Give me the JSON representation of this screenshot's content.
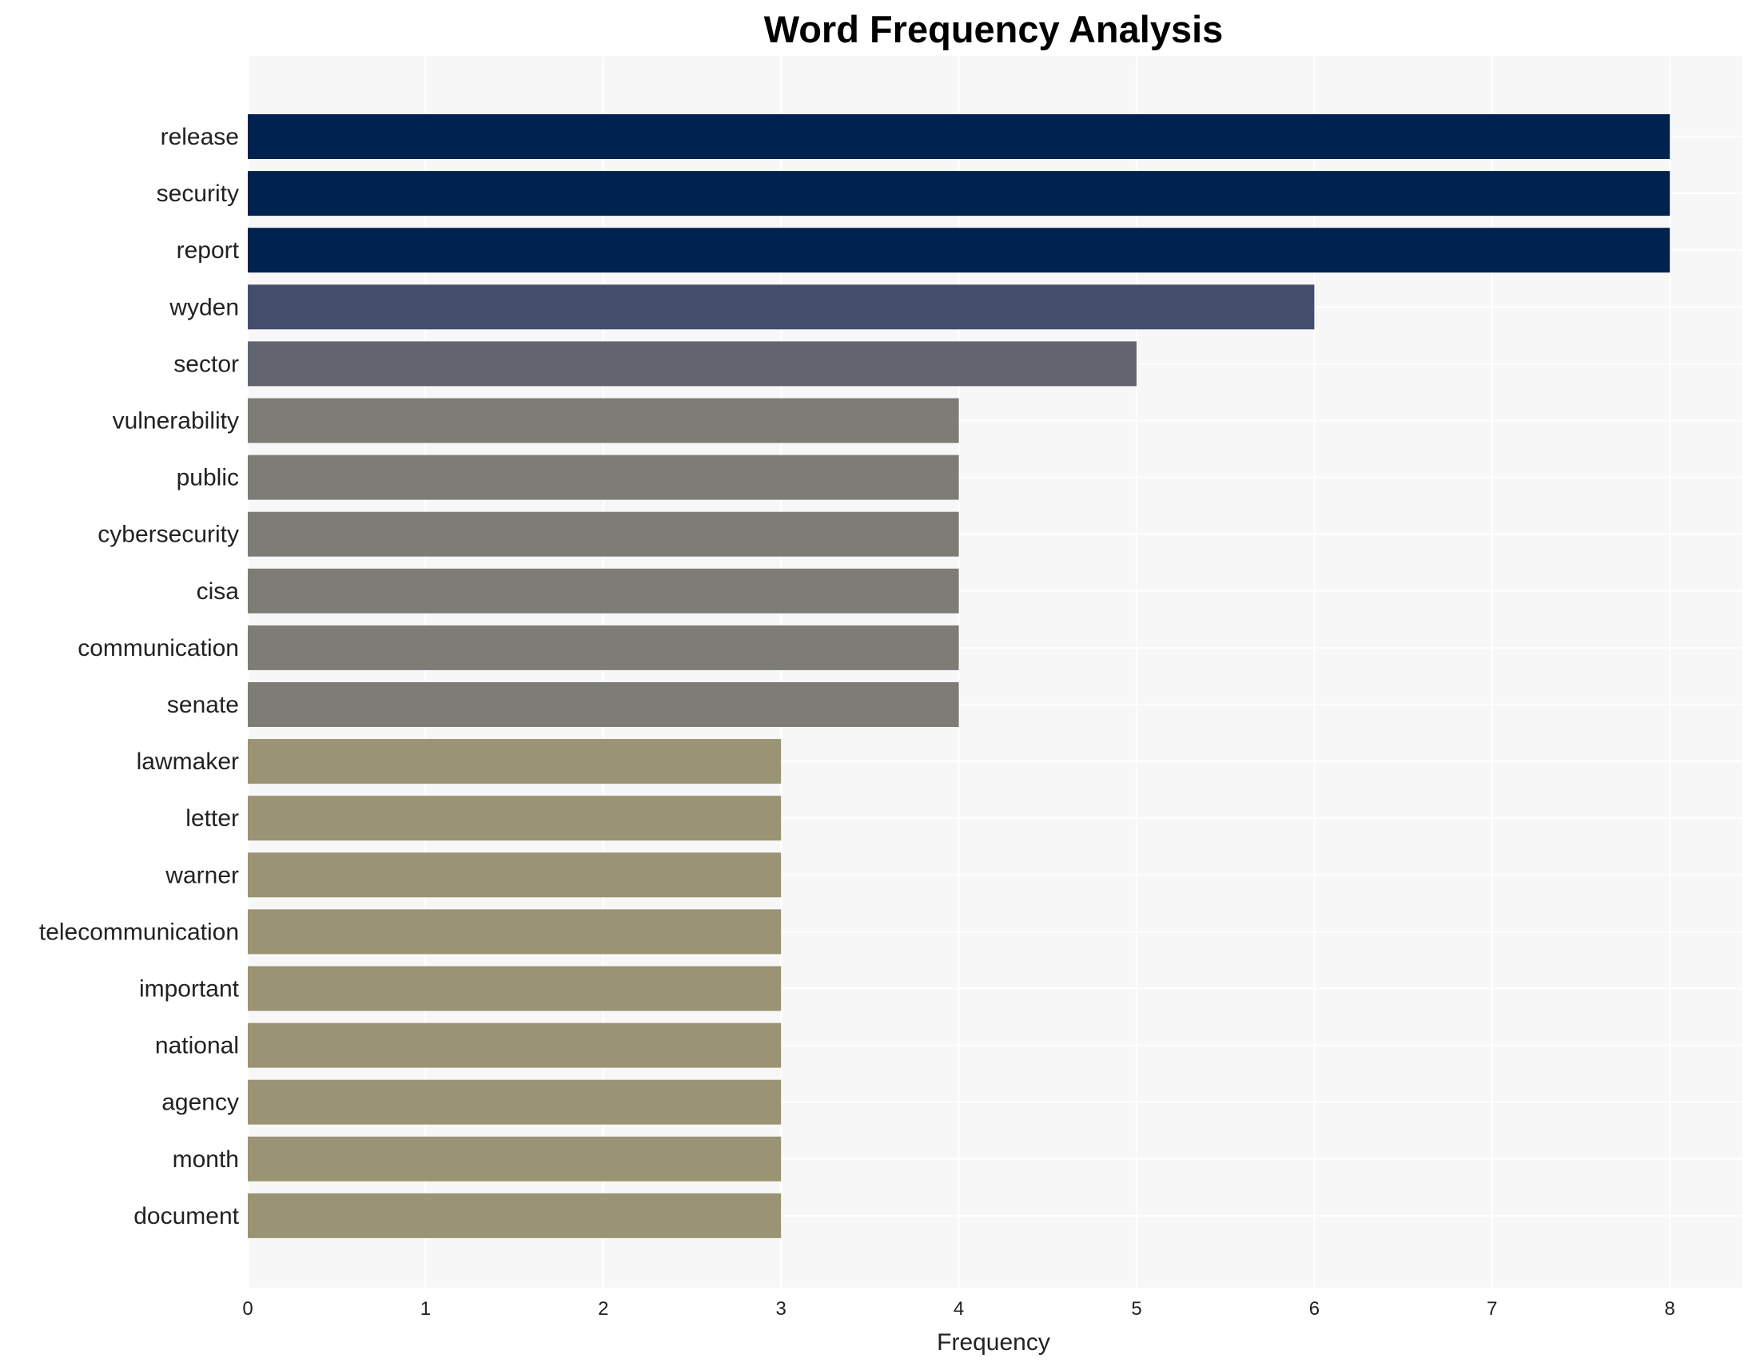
{
  "chart_data": {
    "type": "bar",
    "orientation": "horizontal",
    "title": "Word Frequency Analysis",
    "xlabel": "Frequency",
    "ylabel": "",
    "xlim": [
      0,
      8.4
    ],
    "xticks": [
      0,
      1,
      2,
      3,
      4,
      5,
      6,
      7,
      8
    ],
    "grid": true,
    "categories": [
      "release",
      "security",
      "report",
      "wyden",
      "sector",
      "vulnerability",
      "public",
      "cybersecurity",
      "cisa",
      "communication",
      "senate",
      "lawmaker",
      "letter",
      "warner",
      "telecommunication",
      "important",
      "national",
      "agency",
      "month",
      "document"
    ],
    "values": [
      8,
      8,
      8,
      6,
      5,
      4,
      4,
      4,
      4,
      4,
      4,
      3,
      3,
      3,
      3,
      3,
      3,
      3,
      3,
      3
    ],
    "colors_by_value": {
      "8": "#00224e",
      "6": "#434e6c",
      "5": "#62656f",
      "4": "#7d7c77",
      "3": "#9a9374"
    }
  }
}
